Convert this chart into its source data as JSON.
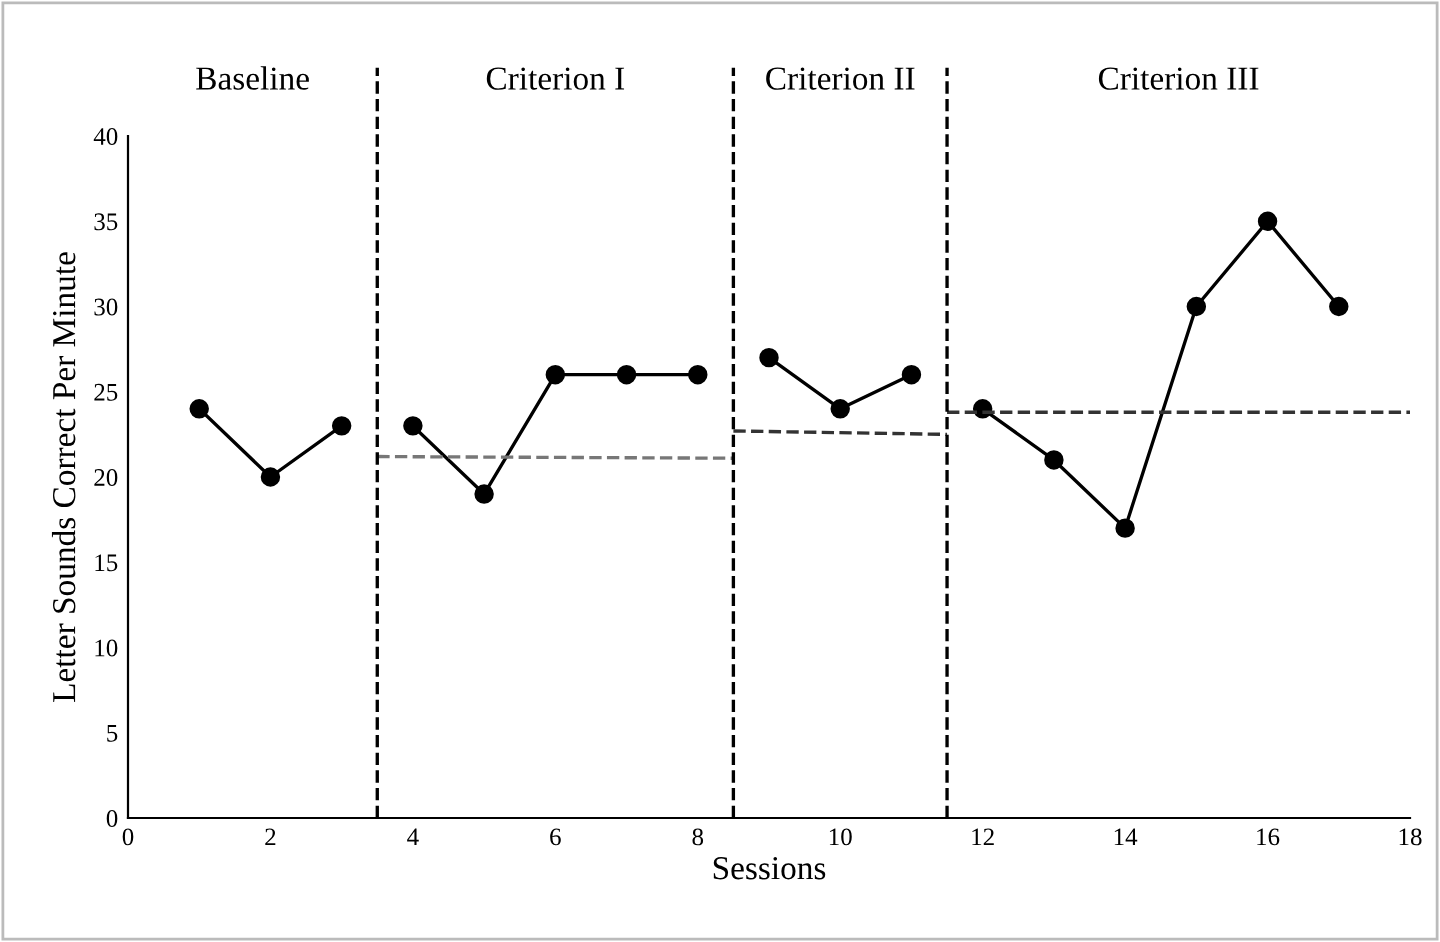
{
  "chart_data": {
    "type": "line",
    "xlabel": "Sessions",
    "ylabel": "Letter Sounds Correct Per Minute",
    "annotations": [
      "Baseline",
      "Criterion I",
      "Criterion II",
      "Criterion III"
    ],
    "series": [
      {
        "color": "#000000",
        "x": [
          1,
          2,
          3
        ],
        "values": [
          24,
          20,
          23
        ],
        "marker": "circle",
        "line_style": "solid"
      },
      {
        "color": "#000000",
        "x": [
          4,
          5,
          6,
          7,
          8
        ],
        "values": [
          23,
          19,
          26,
          26,
          26
        ],
        "marker": "circle",
        "line_style": "solid"
      },
      {
        "color": "#000000",
        "x": [
          9,
          10,
          11
        ],
        "values": [
          27,
          24,
          26
        ],
        "marker": "circle",
        "line_style": "solid"
      },
      {
        "color": "#000000",
        "x": [
          12,
          13,
          14,
          15,
          16,
          17
        ],
        "values": [
          24,
          21,
          17,
          30,
          35,
          30
        ],
        "marker": "circle",
        "line_style": "solid"
      },
      {
        "color": "#777777",
        "x": [
          3.5,
          8.5
        ],
        "values": [
          21.2,
          21.1
        ],
        "marker": "none",
        "line_style": "dashed"
      },
      {
        "color": "#333333",
        "x": [
          8.5,
          11.5
        ],
        "values": [
          22.7,
          22.5
        ],
        "marker": "none",
        "line_style": "dashed"
      },
      {
        "color": "#333333",
        "x": [
          11.5,
          18
        ],
        "values": [
          23.8,
          23.8
        ],
        "marker": "none",
        "line_style": "dashed"
      }
    ],
    "ref_lines": [
      {
        "axis": "x",
        "value": 3.5,
        "color": "#000000",
        "line_style": "dashed"
      },
      {
        "axis": "x",
        "value": 8.5,
        "color": "#000000",
        "line_style": "dashed"
      },
      {
        "axis": "x",
        "value": 11.5,
        "color": "#000000",
        "line_style": "dashed"
      }
    ],
    "xlim": [
      0,
      18
    ],
    "xticks": [
      0,
      2,
      4,
      6,
      8,
      10,
      12,
      14,
      16,
      18
    ],
    "ylim": [
      0,
      40
    ],
    "yticks": [
      0,
      5,
      10,
      15,
      20,
      25,
      30,
      35,
      40
    ],
    "grid": false,
    "legend": false
  }
}
